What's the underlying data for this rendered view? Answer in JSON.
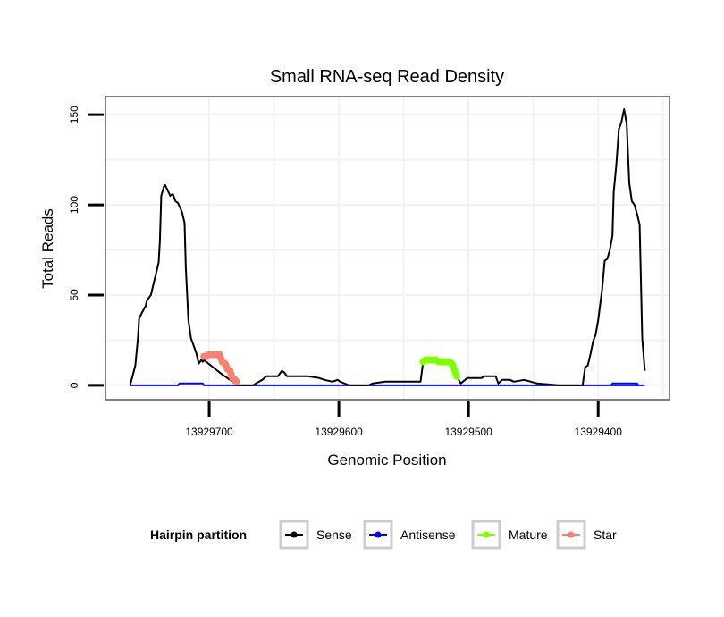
{
  "chart_data": {
    "type": "line",
    "title": "Small RNA-seq Read Density",
    "xlabel": "Genomic Position",
    "ylabel": "Total Reads",
    "x_reversed": true,
    "xlim": [
      13929780,
      13929345
    ],
    "ylim": [
      -8,
      160
    ],
    "x_ticks": [
      13929700,
      13929600,
      13929500,
      13929400
    ],
    "x_tick_labels": [
      "13929700",
      "13929600",
      "13929500",
      "13929400"
    ],
    "y_ticks": [
      0,
      50,
      100,
      150
    ],
    "y_tick_labels": [
      "0",
      "50",
      "100",
      "150"
    ],
    "grid": true,
    "legend": {
      "title": "Hairpin partition",
      "position": "bottom",
      "entries": [
        {
          "name": "Sense",
          "color": "#000000"
        },
        {
          "name": "Antisense",
          "color": "#0000ff"
        },
        {
          "name": "Mature",
          "color": "#7fff00"
        },
        {
          "name": "Star",
          "color": "#fa8072"
        }
      ]
    },
    "series": [
      {
        "name": "Sense",
        "color": "#000000",
        "style": "line",
        "x": [
          13929761,
          13929757,
          13929755,
          13929754,
          13929752,
          13929749,
          13929748,
          13929745,
          13929742,
          13929739,
          13929738,
          13929737,
          13929735,
          13929734,
          13929732,
          13929730,
          13929728,
          13929726,
          13929724,
          13929721,
          13929719,
          13929718,
          13929716,
          13929714,
          13929710,
          13929708,
          13929706,
          13929705,
          13929704,
          13929690,
          13929680,
          13929678,
          13929666,
          13929664,
          13929659,
          13929656,
          13929647,
          13929644,
          13929642,
          13929640,
          13929626,
          13929624,
          13929615,
          13929611,
          13929605,
          13929601,
          13929599,
          13929592,
          13929577,
          13929574,
          13929564,
          13929554,
          13929537,
          13929535,
          13929520,
          13929512,
          13929509,
          13929506,
          13929501,
          13929490,
          13929488,
          13929479,
          13929477,
          13929474,
          13929468,
          13929465,
          13929457,
          13929447,
          13929430,
          13929412,
          13929410,
          13929408,
          13929406,
          13929404,
          13929402,
          13929400,
          13929397,
          13929395,
          13929393,
          13929391,
          13929389,
          13929388,
          13929386,
          13929384,
          13929382,
          13929380,
          13929378,
          13929376,
          13929374,
          13929372,
          13929370,
          13929368,
          13929366,
          13929364
        ],
        "y": [
          0,
          11,
          26,
          37,
          40,
          44,
          47,
          50,
          59,
          68,
          80,
          105,
          110,
          111,
          108,
          105,
          106,
          102,
          101,
          96,
          90,
          65,
          36,
          26,
          18,
          12,
          14,
          13,
          14,
          6,
          1,
          0,
          0,
          1,
          3,
          5,
          5,
          8,
          7,
          5,
          5,
          5,
          4,
          3,
          2,
          3,
          2,
          0,
          0,
          1,
          2,
          2,
          2,
          13,
          14,
          13,
          5,
          1,
          4,
          4,
          5,
          5,
          1,
          3,
          3,
          2,
          3,
          1,
          0,
          0,
          10,
          11,
          17,
          24,
          28,
          36,
          53,
          69,
          70,
          75,
          83,
          107,
          122,
          142,
          146,
          153,
          145,
          112,
          102,
          100,
          95,
          89,
          26,
          8
        ]
      },
      {
        "name": "Antisense",
        "color": "#0000ff",
        "style": "line",
        "x": [
          13929761,
          13929724,
          13929723,
          13929705,
          13929704,
          13929364
        ],
        "y": [
          0,
          0,
          1,
          1,
          0,
          0
        ],
        "x_bump2": [
          13929390,
          13929389,
          13929370,
          13929369
        ],
        "y_bump2": [
          0,
          1,
          1,
          0
        ]
      },
      {
        "name": "Mature",
        "color": "#7fff00",
        "style": "points",
        "x": [
          13929535,
          13929533,
          13929531,
          13929529,
          13929527,
          13929525,
          13929523,
          13929521,
          13929519,
          13929517,
          13929515,
          13929513,
          13929512,
          13929511,
          13929510,
          13929509
        ],
        "y": [
          13,
          14,
          14,
          14,
          14,
          14,
          13,
          13,
          13,
          13,
          13,
          12,
          11,
          9,
          7,
          5
        ]
      },
      {
        "name": "Star",
        "color": "#fa8072",
        "style": "points",
        "x": [
          13929704,
          13929702,
          13929700,
          13929698,
          13929696,
          13929694,
          13929692,
          13929691,
          13929690,
          13929688,
          13929687,
          13929686,
          13929684,
          13929683,
          13929682,
          13929680,
          13929679
        ],
        "y": [
          16,
          16,
          17,
          17,
          17,
          17,
          17,
          15,
          13,
          12,
          11,
          9,
          8,
          6,
          4,
          3,
          2
        ]
      }
    ]
  }
}
